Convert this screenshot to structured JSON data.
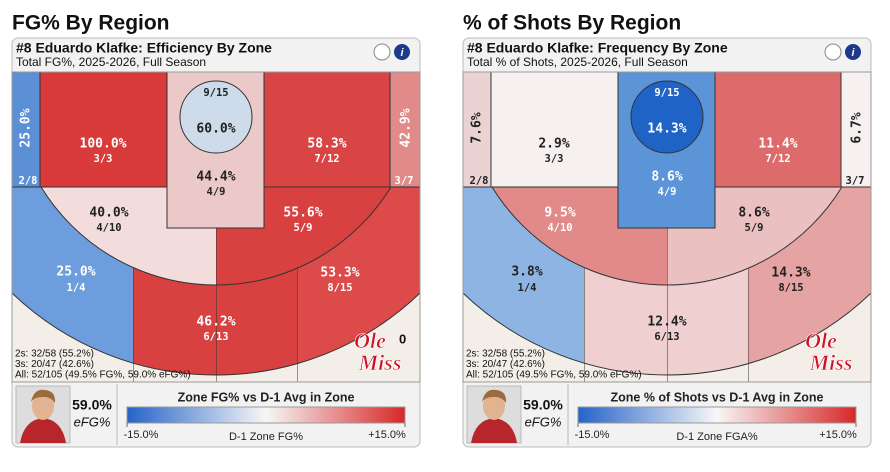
{
  "panels": [
    {
      "heading": "FG% By Region",
      "player_title": "#8 Eduardo Klafke: Efficiency By Zone",
      "subtitle": "Total FG%, 2025-2026, Full Season",
      "zones": [
        {
          "pct": "25.0%",
          "frac": "2/8",
          "color": "#5b8fd6"
        },
        {
          "pct": "100.0%",
          "frac": "3/3",
          "color": "#d93a3a"
        },
        {
          "pct": "44.4%",
          "frac": "4/9",
          "color": "#ecc9c9"
        },
        {
          "pct": "60.0%",
          "frac": "9/15",
          "color": "#cddbeb"
        },
        {
          "pct": "58.3%",
          "frac": "7/12",
          "color": "#d94545"
        },
        {
          "pct": "42.9%",
          "frac": "3/7",
          "color": "#e08a8a"
        },
        {
          "pct": "40.0%",
          "frac": "4/10",
          "color": "#f3dcdc"
        },
        {
          "pct": "55.6%",
          "frac": "5/9",
          "color": "#d94040"
        },
        {
          "pct": "25.0%",
          "frac": "1/4",
          "color": "#6d9ddc"
        },
        {
          "pct": "46.2%",
          "frac": "6/13",
          "color": "#d94040"
        },
        {
          "pct": "53.3%",
          "frac": "8/15",
          "color": "#dc4a4a"
        }
      ],
      "stats": [
        "2s: 32/58 (55.2%)",
        "3s: 20/47 (42.6%)",
        "All: 52/105 (49.5% FG%, 59.0% eFG%)"
      ],
      "logo": [
        "Ole",
        "Miss"
      ],
      "overlay_text": "0",
      "efg_value": "59.0%",
      "efg_label": "eFG%",
      "legend": {
        "title": "Zone FG% vs D-1 Avg in Zone",
        "axis_label": "D-1 Zone FG%",
        "lim": [
          -15,
          15
        ],
        "ticks": [
          {
            "value": -15,
            "label": "-15.0%"
          },
          {
            "value": 15,
            "label": "+15.0%"
          }
        ]
      }
    },
    {
      "heading": "% of Shots By Region",
      "player_title": "#8 Eduardo Klafke: Frequency By Zone",
      "subtitle": "Total % of Shots, 2025-2026, Full Season",
      "zones": [
        {
          "pct": "7.6%",
          "frac": "2/8",
          "color": "#ecd3d3"
        },
        {
          "pct": "2.9%",
          "frac": "3/3",
          "color": "#f6f0f0"
        },
        {
          "pct": "8.6%",
          "frac": "4/9",
          "color": "#5b95d8"
        },
        {
          "pct": "14.3%",
          "frac": "9/15",
          "color": "#1f63c6"
        },
        {
          "pct": "11.4%",
          "frac": "7/12",
          "color": "#dd6b6b"
        },
        {
          "pct": "6.7%",
          "frac": "3/7",
          "color": "#f6f0f0"
        },
        {
          "pct": "9.5%",
          "frac": "4/10",
          "color": "#e28a8a"
        },
        {
          "pct": "8.6%",
          "frac": "5/9",
          "color": "#eac0c0"
        },
        {
          "pct": "3.8%",
          "frac": "1/4",
          "color": "#8db4e2"
        },
        {
          "pct": "12.4%",
          "frac": "6/13",
          "color": "#efcfcf"
        },
        {
          "pct": "14.3%",
          "frac": "8/15",
          "color": "#e5a3a3"
        }
      ],
      "stats": [
        "2s: 32/58 (55.2%)",
        "3s: 20/47 (42.6%)",
        "All: 52/105 (49.5% FG%, 59.0% eFG%)"
      ],
      "logo": [
        "Ole",
        "Miss"
      ],
      "efg_value": "59.0%",
      "efg_label": "eFG%",
      "legend": {
        "title": "Zone % of Shots vs D-1 Avg in Zone",
        "axis_label": "D-1 Zone FGA%",
        "lim": [
          -15,
          15
        ],
        "ticks": [
          {
            "value": -15,
            "label": "-15.0%"
          },
          {
            "value": 15,
            "label": "+15.0%"
          }
        ]
      }
    }
  ]
}
